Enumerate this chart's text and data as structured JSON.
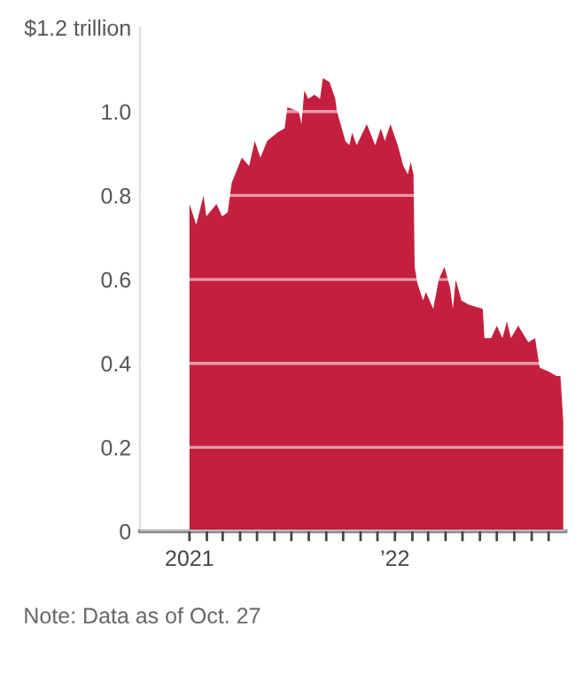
{
  "chart_data": {
    "type": "area",
    "x": [
      "2021-01-01",
      "2021-01-13",
      "2021-01-26",
      "2021-01-31",
      "2021-02-18",
      "2021-02-28",
      "2021-03-10",
      "2021-03-17",
      "2021-04-04",
      "2021-04-17",
      "2021-04-27",
      "2021-05-07",
      "2021-05-19",
      "2021-06-06",
      "2021-06-19",
      "2021-06-24",
      "2021-07-14",
      "2021-07-19",
      "2021-07-24",
      "2021-07-31",
      "2021-08-11",
      "2021-08-21",
      "2021-08-26",
      "2021-09-07",
      "2021-09-17",
      "2021-09-20",
      "2021-10-05",
      "2021-10-12",
      "2021-10-17",
      "2021-10-25",
      "2021-11-12",
      "2021-11-27",
      "2021-12-07",
      "2021-12-14",
      "2021-12-24",
      "2022-01-06",
      "2022-01-16",
      "2022-01-24",
      "2022-01-29",
      "2022-02-03",
      "2022-02-05",
      "2022-02-10",
      "2022-02-20",
      "2022-02-25",
      "2022-03-10",
      "2022-03-20",
      "2022-03-30",
      "2022-04-09",
      "2022-04-14",
      "2022-04-19",
      "2022-04-29",
      "2022-05-12",
      "2022-06-06",
      "2022-06-09",
      "2022-06-21",
      "2022-07-01",
      "2022-07-11",
      "2022-07-19",
      "2022-07-26",
      "2022-08-08",
      "2022-08-26",
      "2022-09-07",
      "2022-09-15",
      "2022-10-02",
      "2022-10-15",
      "2022-10-22",
      "2022-10-27"
    ],
    "series": [
      {
        "color": "#c41f3e",
        "values": [
          0.78,
          0.73,
          0.8,
          0.75,
          0.78,
          0.75,
          0.76,
          0.83,
          0.89,
          0.87,
          0.93,
          0.89,
          0.93,
          0.95,
          0.96,
          1.01,
          1.0,
          0.97,
          1.05,
          1.03,
          1.04,
          1.03,
          1.08,
          1.07,
          1.03,
          1.0,
          0.93,
          0.92,
          0.95,
          0.92,
          0.97,
          0.92,
          0.96,
          0.93,
          0.97,
          0.92,
          0.87,
          0.85,
          0.88,
          0.85,
          0.63,
          0.59,
          0.55,
          0.57,
          0.53,
          0.6,
          0.63,
          0.58,
          0.53,
          0.6,
          0.55,
          0.54,
          0.53,
          0.46,
          0.46,
          0.49,
          0.46,
          0.5,
          0.46,
          0.49,
          0.45,
          0.46,
          0.39,
          0.38,
          0.37,
          0.37,
          0.26
        ]
      }
    ],
    "xlim": [
      "2020-10-05",
      "2022-10-31"
    ],
    "xticks": [
      {
        "value": "2021-01-01",
        "label": "2021"
      },
      {
        "value": "2021-02-01",
        "label": null
      },
      {
        "value": "2021-03-01",
        "label": null
      },
      {
        "value": "2021-04-01",
        "label": null
      },
      {
        "value": "2021-05-01",
        "label": null
      },
      {
        "value": "2021-06-01",
        "label": null
      },
      {
        "value": "2021-07-01",
        "label": null
      },
      {
        "value": "2021-08-01",
        "label": null
      },
      {
        "value": "2021-09-01",
        "label": null
      },
      {
        "value": "2021-10-01",
        "label": null
      },
      {
        "value": "2021-11-01",
        "label": null
      },
      {
        "value": "2021-12-01",
        "label": null
      },
      {
        "value": "2022-01-01",
        "label": "’22"
      },
      {
        "value": "2022-02-01",
        "label": null
      },
      {
        "value": "2022-03-01",
        "label": null
      },
      {
        "value": "2022-04-01",
        "label": null
      },
      {
        "value": "2022-05-01",
        "label": null
      },
      {
        "value": "2022-06-01",
        "label": null
      },
      {
        "value": "2022-07-01",
        "label": null
      },
      {
        "value": "2022-08-01",
        "label": null
      },
      {
        "value": "2022-09-01",
        "label": null
      },
      {
        "value": "2022-10-01",
        "label": null
      }
    ],
    "ylim": [
      0,
      1.2
    ],
    "yticks": [
      0,
      0.2,
      0.4,
      0.6,
      0.8,
      {
        "value": 1.0,
        "label": "1.0"
      },
      {
        "value": 1.2,
        "label": "$1.2 trillion"
      }
    ],
    "grid": "y",
    "annotations": [
      "Note: Data as of Oct. 27"
    ]
  }
}
